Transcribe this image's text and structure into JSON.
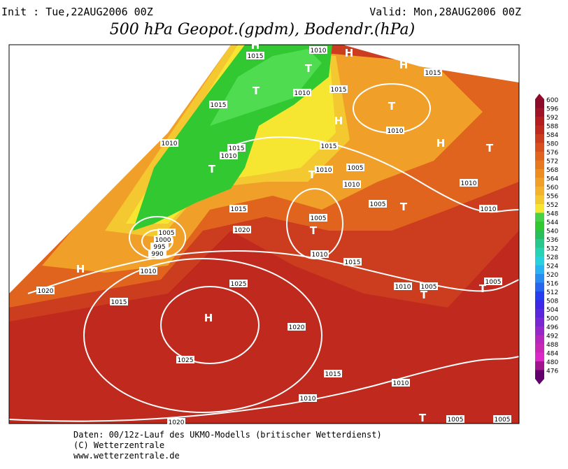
{
  "header": {
    "init": "Init : Tue,22AUG2006 00Z",
    "valid": "Valid: Mon,28AUG2006 00Z",
    "title": "500 hPa Geopot.(gpdm), Bodendr.(hPa)"
  },
  "footer": [
    "Daten: 00/12z-Lauf des UKMO-Modells (britischer Wetterdienst)",
    "(C) Wetterzentrale",
    "www.wetterzentrale.de"
  ],
  "isobar_labels": [
    "1015",
    "1010",
    "1010",
    "1015",
    "1015",
    "1010",
    "1015",
    "1010",
    "1015",
    "1010",
    "1005",
    "1010",
    "1005",
    "1010",
    "1015",
    "1010",
    "1010",
    "1015",
    "1020",
    "1005",
    "1000",
    "995",
    "990",
    "1005",
    "1010",
    "1015",
    "1010",
    "1005",
    "1005",
    "1025",
    "1010",
    "1015",
    "1020",
    "1020",
    "1025",
    "1015",
    "1010",
    "1010",
    "1020",
    "1005",
    "1005"
  ],
  "pressure_centers": [
    "H",
    "H",
    "H",
    "T",
    "T",
    "T",
    "H",
    "H",
    "T",
    "T",
    "T",
    "T",
    "T",
    "H",
    "T",
    "T",
    "H",
    "T"
  ],
  "colorbar": [
    {
      "label": "600",
      "color": "#8c0a2a"
    },
    {
      "label": "596",
      "color": "#a01428"
    },
    {
      "label": "592",
      "color": "#b41e1e"
    },
    {
      "label": "588",
      "color": "#c02a1e"
    },
    {
      "label": "584",
      "color": "#cc3c1e"
    },
    {
      "label": "580",
      "color": "#d8501e"
    },
    {
      "label": "576",
      "color": "#e0641e"
    },
    {
      "label": "572",
      "color": "#e87820"
    },
    {
      "label": "568",
      "color": "#ee8c22"
    },
    {
      "label": "564",
      "color": "#f0a028"
    },
    {
      "label": "560",
      "color": "#f2b42c"
    },
    {
      "label": "556",
      "color": "#f4c830"
    },
    {
      "label": "552",
      "color": "#f6e632"
    },
    {
      "label": "548",
      "color": "#46d246"
    },
    {
      "label": "544",
      "color": "#32c832"
    },
    {
      "label": "540",
      "color": "#28be5a"
    },
    {
      "label": "536",
      "color": "#28c88c"
    },
    {
      "label": "532",
      "color": "#28d2b4"
    },
    {
      "label": "528",
      "color": "#28d2dc"
    },
    {
      "label": "524",
      "color": "#28b4f0"
    },
    {
      "label": "520",
      "color": "#288cf0"
    },
    {
      "label": "516",
      "color": "#2864f0"
    },
    {
      "label": "512",
      "color": "#283cf0"
    },
    {
      "label": "508",
      "color": "#3c28e6"
    },
    {
      "label": "504",
      "color": "#5a28dc"
    },
    {
      "label": "500",
      "color": "#7828d2"
    },
    {
      "label": "496",
      "color": "#9628c8"
    },
    {
      "label": "492",
      "color": "#b428be"
    },
    {
      "label": "488",
      "color": "#c828b4"
    },
    {
      "label": "484",
      "color": "#dc28c8"
    },
    {
      "label": "480",
      "color": "#a0148c"
    },
    {
      "label": "476",
      "color": "#64006e"
    }
  ]
}
